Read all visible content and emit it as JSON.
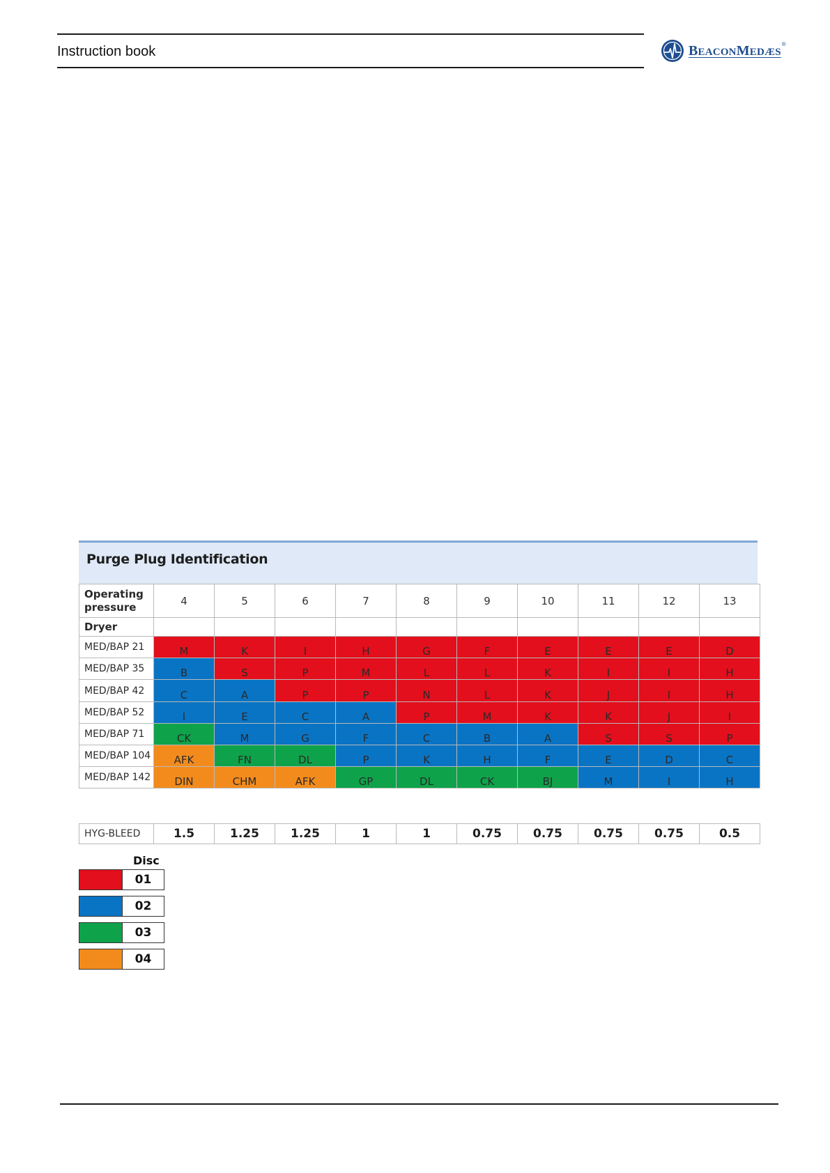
{
  "header": {
    "title": "Instruction book",
    "logo": {
      "icon": "beaconmedaes-logo-icon",
      "text_b": "B",
      "text_eacon": "EACON",
      "text_m": "M",
      "text_ed": "ED",
      "text_aes": "ÆS",
      "reg": "®"
    }
  },
  "purge_table": {
    "title": "Purge Plug Identification",
    "operating_pressure_label": "Operating pressure",
    "dryer_label": "Dryer",
    "pressures": [
      "4",
      "5",
      "6",
      "7",
      "8",
      "9",
      "10",
      "11",
      "12",
      "13"
    ],
    "rows": [
      {
        "dryer": "MED/BAP 21",
        "cells": [
          [
            "M",
            1
          ],
          [
            "K",
            1
          ],
          [
            "I",
            1
          ],
          [
            "H",
            1
          ],
          [
            "G",
            1
          ],
          [
            "F",
            1
          ],
          [
            "E",
            1
          ],
          [
            "E",
            1
          ],
          [
            "E",
            1
          ],
          [
            "D",
            1
          ]
        ]
      },
      {
        "dryer": "MED/BAP 35",
        "cells": [
          [
            "B",
            2
          ],
          [
            "S",
            1
          ],
          [
            "P",
            1
          ],
          [
            "M",
            1
          ],
          [
            "L",
            1
          ],
          [
            "L",
            1
          ],
          [
            "K",
            1
          ],
          [
            "I",
            1
          ],
          [
            "I",
            1
          ],
          [
            "H",
            1
          ]
        ]
      },
      {
        "dryer": "MED/BAP 42",
        "cells": [
          [
            "C",
            2
          ],
          [
            "A",
            2
          ],
          [
            "P",
            1
          ],
          [
            "P",
            1
          ],
          [
            "N",
            1
          ],
          [
            "L",
            1
          ],
          [
            "K",
            1
          ],
          [
            "J",
            1
          ],
          [
            "I",
            1
          ],
          [
            "H",
            1
          ]
        ]
      },
      {
        "dryer": "MED/BAP 52",
        "cells": [
          [
            "I",
            2
          ],
          [
            "E",
            2
          ],
          [
            "C",
            2
          ],
          [
            "A",
            2
          ],
          [
            "P",
            1
          ],
          [
            "M",
            1
          ],
          [
            "K",
            1
          ],
          [
            "K",
            1
          ],
          [
            "J",
            1
          ],
          [
            "I",
            1
          ]
        ]
      },
      {
        "dryer": "MED/BAP 71",
        "cells": [
          [
            "CK",
            3
          ],
          [
            "M",
            2
          ],
          [
            "G",
            2
          ],
          [
            "F",
            2
          ],
          [
            "C",
            2
          ],
          [
            "B",
            2
          ],
          [
            "A",
            2
          ],
          [
            "S",
            1
          ],
          [
            "S",
            1
          ],
          [
            "P",
            1
          ]
        ]
      },
      {
        "dryer": "MED/BAP 104",
        "cells": [
          [
            "AFK",
            4
          ],
          [
            "FN",
            3
          ],
          [
            "DL",
            3
          ],
          [
            "P",
            2
          ],
          [
            "K",
            2
          ],
          [
            "H",
            2
          ],
          [
            "F",
            2
          ],
          [
            "E",
            2
          ],
          [
            "D",
            2
          ],
          [
            "C",
            2
          ]
        ]
      },
      {
        "dryer": "MED/BAP 142",
        "cells": [
          [
            "DIN",
            4
          ],
          [
            "CHM",
            4
          ],
          [
            "AFK",
            4
          ],
          [
            "GP",
            3
          ],
          [
            "DL",
            3
          ],
          [
            "CK",
            3
          ],
          [
            "BJ",
            3
          ],
          [
            "M",
            2
          ],
          [
            "I",
            2
          ],
          [
            "H",
            2
          ]
        ]
      }
    ]
  },
  "bleed": {
    "label": "HYG-BLEED",
    "values": [
      "1.5",
      "1.25",
      "1.25",
      "1",
      "1",
      "0.75",
      "0.75",
      "0.75",
      "0.75",
      "0.5"
    ]
  },
  "legend": {
    "title": "Disc",
    "items": [
      {
        "code": "01",
        "color": "#e30f1c"
      },
      {
        "code": "02",
        "color": "#0a74c4"
      },
      {
        "code": "03",
        "color": "#0ea34a"
      },
      {
        "code": "04",
        "color": "#f38b1c"
      }
    ]
  }
}
